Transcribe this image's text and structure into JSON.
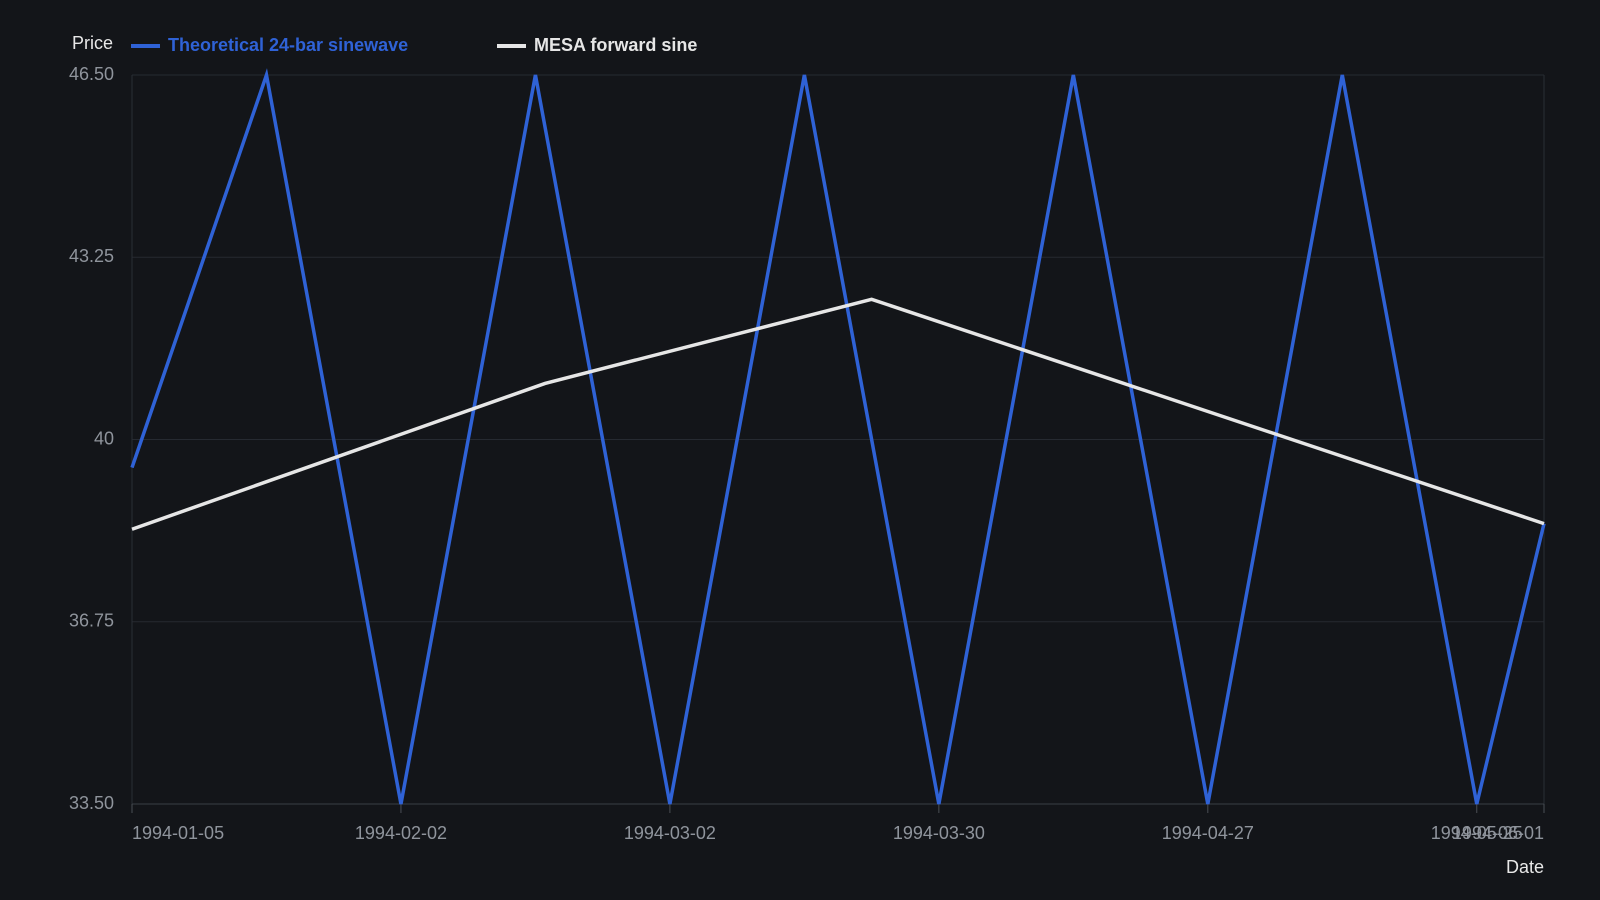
{
  "chart_data": {
    "type": "line",
    "y_label": "Price",
    "x_label": "Date",
    "series": [
      {
        "name": "Theoretical 24-bar sinewave",
        "color": "#2f62d6",
        "x": [
          "1994-01-05",
          "1994-01-19",
          "1994-02-02",
          "1994-02-16",
          "1994-03-02",
          "1994-03-16",
          "1994-03-30",
          "1994-04-13",
          "1994-04-27",
          "1994-05-11",
          "1994-05-25",
          "1994-06-01"
        ],
        "values": [
          39.5,
          46.5,
          33.5,
          46.5,
          33.5,
          46.5,
          33.5,
          46.5,
          33.5,
          46.5,
          33.5,
          38.5
        ]
      },
      {
        "name": "MESA forward sine",
        "color": "#e6e6e6",
        "x": [
          "1994-01-05",
          "1994-02-17",
          "1994-03-23",
          "1994-06-01"
        ],
        "values": [
          38.4,
          41.0,
          42.5,
          38.5
        ]
      }
    ],
    "xlim": [
      "1994-01-05",
      "1994-06-01"
    ],
    "xticks": [
      "1994-01-05",
      "1994-02-02",
      "1994-03-02",
      "1994-03-30",
      "1994-04-27",
      "1994-05-25",
      "1994-06-01"
    ],
    "ylim": [
      33.5,
      46.5
    ],
    "yticks": [
      {
        "value": 33.5,
        "label": "33.50"
      },
      36.75,
      40,
      43.25,
      {
        "value": 46.5,
        "label": "46.50"
      }
    ],
    "grid": true
  }
}
